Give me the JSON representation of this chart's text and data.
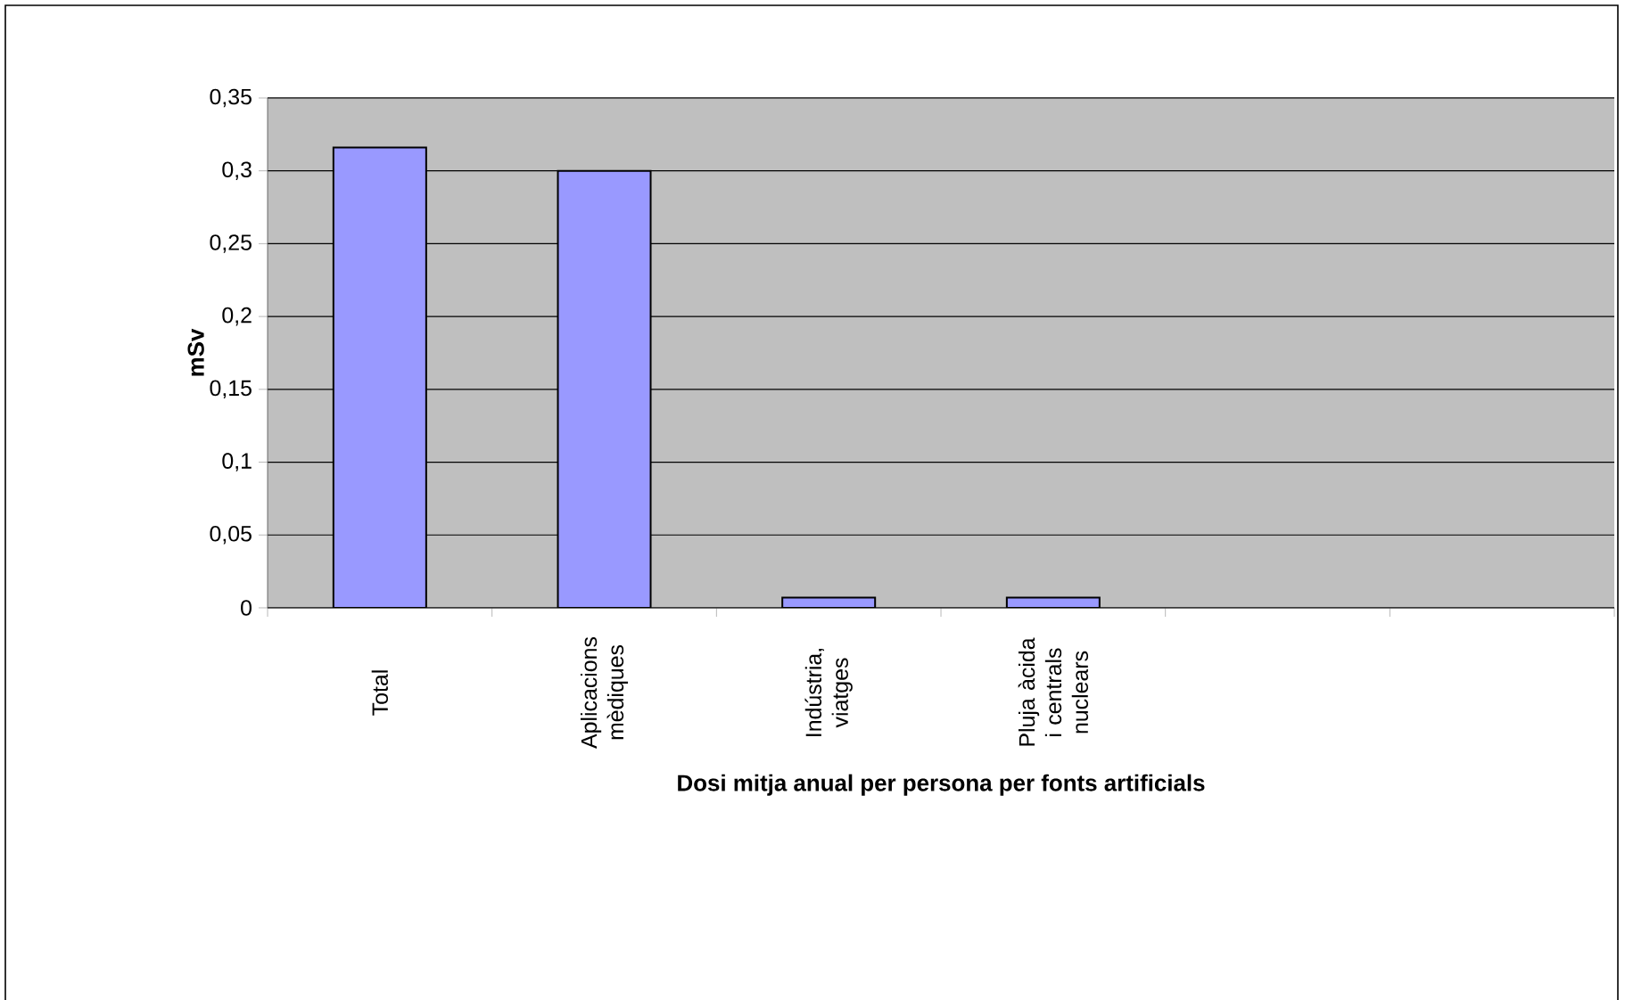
{
  "chart_data": {
    "type": "bar",
    "xlabel": "Dosi mitja anual per persona per fonts artificials",
    "ylabel": "mSv",
    "categories": [
      "Total",
      "Aplicacions mèdiques",
      "Indústria, viatges",
      "Pluja àcida i centrals nuclears",
      null,
      null
    ],
    "values": [
      0.316,
      0.3,
      0.007,
      0.007,
      null,
      null
    ],
    "color": "#9999ff",
    "ylim": [
      0,
      0.35
    ],
    "yticks": [
      {
        "value": 0,
        "label": "0"
      },
      {
        "value": 0.05,
        "label": "0,05"
      },
      {
        "value": 0.1,
        "label": "0,1"
      },
      {
        "value": 0.15,
        "label": "0,15"
      },
      {
        "value": 0.2,
        "label": "0,2"
      },
      {
        "value": 0.25,
        "label": "0,25"
      },
      {
        "value": 0.3,
        "label": "0,3"
      },
      {
        "value": 0.35,
        "label": "0,35"
      }
    ],
    "grid": "y"
  }
}
